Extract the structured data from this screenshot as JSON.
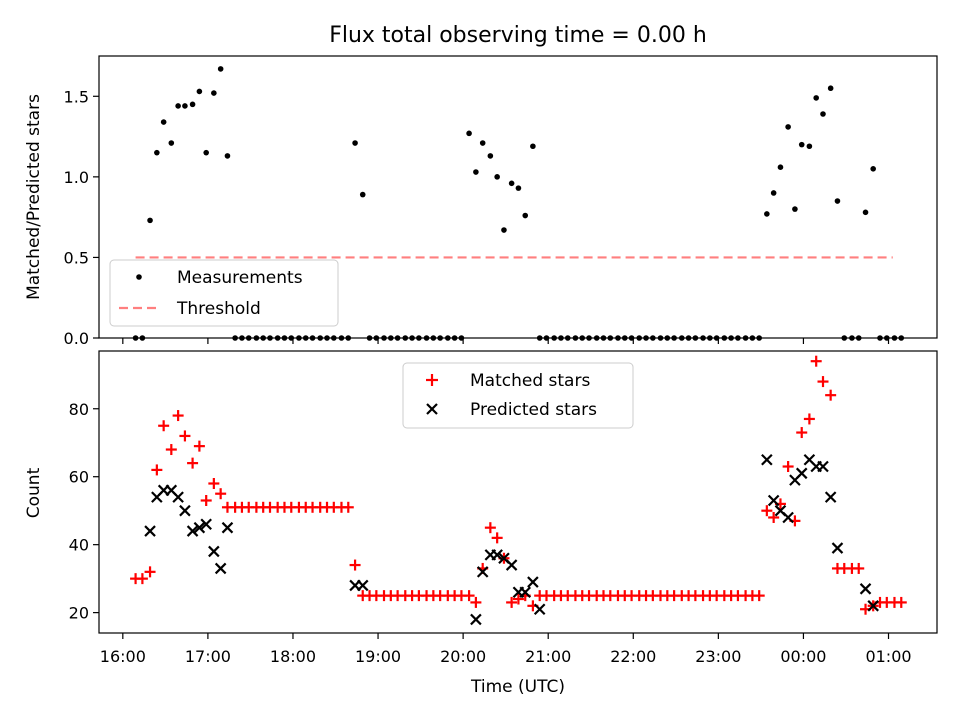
{
  "title": "Flux total observing time = 0.00 h",
  "chart_data": [
    {
      "type": "scatter",
      "name": "ratio",
      "ylabel": "Matched/Predicted stars",
      "ylim": [
        0,
        1.75
      ],
      "yticks": [
        0.0,
        0.5,
        1.0,
        1.5
      ],
      "ytick_labels": [
        "0.0",
        "0.5",
        "1.0",
        "1.5"
      ],
      "legend_position": "lower-left",
      "threshold": {
        "name": "Threshold",
        "value": 0.5,
        "x_start": 16.15,
        "x_end": 25.05,
        "color": "#ff7f7f"
      },
      "measurements": {
        "name": "Measurements",
        "color": "#000000",
        "x": [
          16.15,
          16.23,
          16.32,
          16.4,
          16.48,
          16.57,
          16.65,
          16.73,
          16.82,
          16.9,
          16.98,
          17.07,
          17.15,
          17.23,
          17.32,
          17.4,
          17.48,
          17.57,
          17.65,
          17.73,
          17.82,
          17.9,
          17.98,
          18.07,
          18.15,
          18.23,
          18.32,
          18.4,
          18.48,
          18.57,
          18.65,
          18.73,
          18.82,
          18.9,
          18.98,
          19.07,
          19.15,
          19.23,
          19.32,
          19.4,
          19.48,
          19.57,
          19.65,
          19.73,
          19.82,
          19.9,
          19.98,
          20.07,
          20.15,
          20.23,
          20.32,
          20.4,
          20.48,
          20.57,
          20.65,
          20.73,
          20.82,
          20.9,
          20.98,
          21.07,
          21.15,
          21.23,
          21.32,
          21.4,
          21.48,
          21.57,
          21.65,
          21.73,
          21.82,
          21.9,
          21.98,
          22.07,
          22.15,
          22.23,
          22.32,
          22.4,
          22.48,
          22.57,
          22.65,
          22.73,
          22.82,
          22.9,
          22.98,
          23.07,
          23.15,
          23.23,
          23.32,
          23.4,
          23.48,
          23.57,
          23.65,
          23.73,
          23.82,
          23.9,
          23.98,
          24.07,
          24.15,
          24.23,
          24.32,
          24.4,
          24.48,
          24.57,
          24.65,
          24.73,
          24.82,
          24.9,
          24.98,
          25.07,
          25.15
        ],
        "y": [
          0,
          0,
          0.73,
          1.15,
          1.34,
          1.21,
          1.44,
          1.44,
          1.45,
          1.53,
          1.15,
          1.52,
          1.67,
          1.13,
          0,
          0,
          0,
          0,
          0,
          0,
          0,
          0,
          0,
          0,
          0,
          0,
          0,
          0,
          0,
          0,
          0,
          1.21,
          0.89,
          0,
          0,
          0,
          0,
          0,
          0,
          0,
          0,
          0,
          0,
          0,
          0,
          0,
          0,
          1.27,
          1.03,
          1.21,
          1.13,
          1.0,
          0.67,
          0.96,
          0.93,
          0.76,
          1.19,
          0,
          0,
          0,
          0,
          0,
          0,
          0,
          0,
          0,
          0,
          0,
          0,
          0,
          0,
          0,
          0,
          0,
          0,
          0,
          0,
          0,
          0,
          0,
          0,
          0,
          0,
          0,
          0,
          0,
          0,
          0,
          0,
          0.77,
          0.9,
          1.06,
          1.31,
          0.8,
          1.2,
          1.19,
          1.49,
          1.39,
          1.55,
          0.85,
          0,
          0,
          0,
          0.78,
          1.05,
          0,
          0,
          0,
          0
        ]
      },
      "xticks": [
        "16:00",
        "17:00",
        "18:00",
        "19:00",
        "20:00",
        "21:00",
        "22:00",
        "23:00",
        "00:00",
        "01:00"
      ]
    },
    {
      "type": "scatter",
      "name": "counts",
      "ylabel": "Count",
      "xlabel": "Time (UTC)",
      "ylim": [
        14,
        97
      ],
      "yticks": [
        20,
        40,
        60,
        80
      ],
      "ytick_labels": [
        "20",
        "40",
        "60",
        "80"
      ],
      "xlim": [
        15.72,
        25.57
      ],
      "xticks": [
        16,
        17,
        18,
        19,
        20,
        21,
        22,
        23,
        24,
        25
      ],
      "xtick_labels": [
        "16:00",
        "17:00",
        "18:00",
        "19:00",
        "20:00",
        "21:00",
        "22:00",
        "23:00",
        "00:00",
        "01:00"
      ],
      "legend_position": "upper-center",
      "series": [
        {
          "name": "Matched stars",
          "marker": "+",
          "color": "#ff0000",
          "points": [
            [
              16.15,
              30
            ],
            [
              16.23,
              30
            ],
            [
              16.32,
              32
            ],
            [
              16.4,
              62
            ],
            [
              16.48,
              75
            ],
            [
              16.57,
              68
            ],
            [
              16.65,
              78
            ],
            [
              16.73,
              72
            ],
            [
              16.82,
              64
            ],
            [
              16.9,
              69
            ],
            [
              16.98,
              53
            ],
            [
              17.07,
              58
            ],
            [
              17.15,
              55
            ],
            [
              17.23,
              51
            ],
            [
              17.32,
              51
            ],
            [
              17.4,
              51
            ],
            [
              17.48,
              51
            ],
            [
              17.57,
              51
            ],
            [
              17.65,
              51
            ],
            [
              17.73,
              51
            ],
            [
              17.82,
              51
            ],
            [
              17.9,
              51
            ],
            [
              17.98,
              51
            ],
            [
              18.07,
              51
            ],
            [
              18.15,
              51
            ],
            [
              18.23,
              51
            ],
            [
              18.32,
              51
            ],
            [
              18.4,
              51
            ],
            [
              18.48,
              51
            ],
            [
              18.57,
              51
            ],
            [
              18.65,
              51
            ],
            [
              18.73,
              34
            ],
            [
              18.82,
              25
            ],
            [
              18.9,
              25
            ],
            [
              18.98,
              25
            ],
            [
              19.07,
              25
            ],
            [
              19.15,
              25
            ],
            [
              19.23,
              25
            ],
            [
              19.32,
              25
            ],
            [
              19.4,
              25
            ],
            [
              19.48,
              25
            ],
            [
              19.57,
              25
            ],
            [
              19.65,
              25
            ],
            [
              19.73,
              25
            ],
            [
              19.82,
              25
            ],
            [
              19.9,
              25
            ],
            [
              19.98,
              25
            ],
            [
              20.07,
              25
            ],
            [
              20.15,
              23
            ],
            [
              20.23,
              33
            ],
            [
              20.32,
              45
            ],
            [
              20.4,
              42
            ],
            [
              20.48,
              36
            ],
            [
              20.57,
              23
            ],
            [
              20.65,
              24
            ],
            [
              20.73,
              25
            ],
            [
              20.82,
              22
            ],
            [
              20.9,
              25
            ],
            [
              20.98,
              25
            ],
            [
              21.07,
              25
            ],
            [
              21.15,
              25
            ],
            [
              21.23,
              25
            ],
            [
              21.32,
              25
            ],
            [
              21.4,
              25
            ],
            [
              21.48,
              25
            ],
            [
              21.57,
              25
            ],
            [
              21.65,
              25
            ],
            [
              21.73,
              25
            ],
            [
              21.82,
              25
            ],
            [
              21.9,
              25
            ],
            [
              21.98,
              25
            ],
            [
              22.07,
              25
            ],
            [
              22.15,
              25
            ],
            [
              22.23,
              25
            ],
            [
              22.32,
              25
            ],
            [
              22.4,
              25
            ],
            [
              22.48,
              25
            ],
            [
              22.57,
              25
            ],
            [
              22.65,
              25
            ],
            [
              22.73,
              25
            ],
            [
              22.82,
              25
            ],
            [
              22.9,
              25
            ],
            [
              22.98,
              25
            ],
            [
              23.07,
              25
            ],
            [
              23.15,
              25
            ],
            [
              23.23,
              25
            ],
            [
              23.32,
              25
            ],
            [
              23.4,
              25
            ],
            [
              23.48,
              25
            ],
            [
              23.57,
              50
            ],
            [
              23.65,
              48
            ],
            [
              23.73,
              52
            ],
            [
              23.82,
              63
            ],
            [
              23.9,
              47
            ],
            [
              23.98,
              73
            ],
            [
              24.07,
              77
            ],
            [
              24.15,
              94
            ],
            [
              24.23,
              88
            ],
            [
              24.32,
              84
            ],
            [
              24.4,
              33
            ],
            [
              24.48,
              33
            ],
            [
              24.57,
              33
            ],
            [
              24.65,
              33
            ],
            [
              24.73,
              21
            ],
            [
              24.82,
              22
            ],
            [
              24.9,
              23
            ],
            [
              24.98,
              23
            ],
            [
              25.07,
              23
            ],
            [
              25.15,
              23
            ]
          ]
        },
        {
          "name": "Predicted stars",
          "marker": "x",
          "color": "#000000",
          "points": [
            [
              16.32,
              44
            ],
            [
              16.4,
              54
            ],
            [
              16.48,
              56
            ],
            [
              16.57,
              56
            ],
            [
              16.65,
              54
            ],
            [
              16.73,
              50
            ],
            [
              16.82,
              44
            ],
            [
              16.9,
              45
            ],
            [
              16.98,
              46
            ],
            [
              17.07,
              38
            ],
            [
              17.15,
              33
            ],
            [
              17.23,
              45
            ],
            [
              18.73,
              28
            ],
            [
              18.82,
              28
            ],
            [
              20.15,
              18
            ],
            [
              20.23,
              32
            ],
            [
              20.32,
              37
            ],
            [
              20.4,
              37
            ],
            [
              20.48,
              36
            ],
            [
              20.57,
              34
            ],
            [
              20.65,
              26
            ],
            [
              20.73,
              26
            ],
            [
              20.82,
              29
            ],
            [
              20.9,
              21
            ],
            [
              23.57,
              65
            ],
            [
              23.65,
              53
            ],
            [
              23.73,
              50
            ],
            [
              23.82,
              48
            ],
            [
              23.9,
              59
            ],
            [
              23.98,
              61
            ],
            [
              24.07,
              65
            ],
            [
              24.15,
              63
            ],
            [
              24.23,
              63
            ],
            [
              24.32,
              54
            ],
            [
              24.4,
              39
            ],
            [
              24.73,
              27
            ],
            [
              24.82,
              22
            ]
          ]
        }
      ]
    }
  ]
}
